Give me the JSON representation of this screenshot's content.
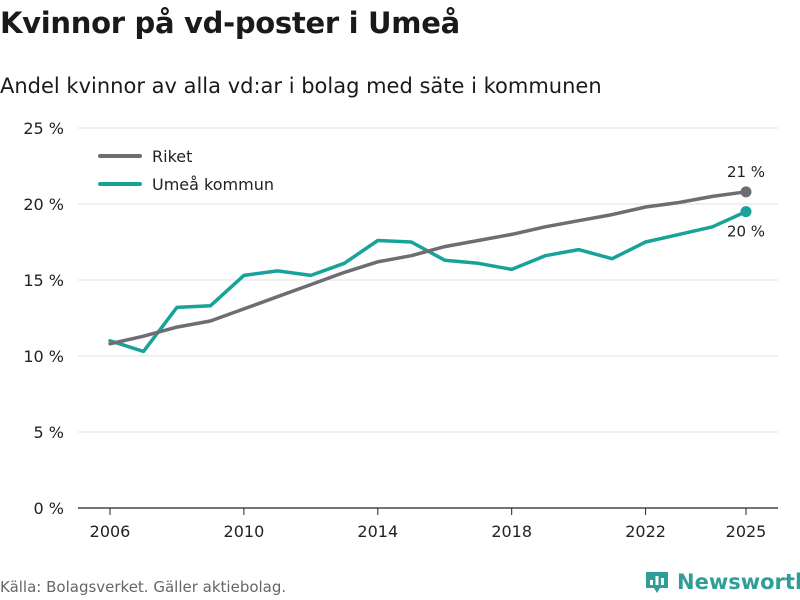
{
  "title": "Kvinnor på vd-poster i Umeå",
  "subtitle": "Andel kvinnor av alla vd:ar i bolag med säte i kommunen",
  "source": "Källa: Bolagsverket. Gäller aktiebolag.",
  "brand": "Newsworthy",
  "colors": {
    "riket": "#6d6d73",
    "umea": "#17a39a",
    "grid": "#e2e2e2",
    "axis": "#222222",
    "brand": "#2f9e96"
  },
  "chart_data": {
    "type": "line",
    "x": [
      2006,
      2007,
      2008,
      2009,
      2010,
      2011,
      2012,
      2013,
      2014,
      2015,
      2016,
      2017,
      2018,
      2019,
      2020,
      2021,
      2022,
      2023,
      2024,
      2025
    ],
    "series": [
      {
        "name": "Riket",
        "values": [
          10.8,
          11.3,
          11.9,
          12.3,
          13.1,
          13.9,
          14.7,
          15.5,
          16.2,
          16.6,
          17.2,
          17.6,
          18.0,
          18.5,
          18.9,
          19.3,
          19.8,
          20.1,
          20.5,
          20.8
        ],
        "end_label": "21 %"
      },
      {
        "name": "Umeå kommun",
        "values": [
          11.0,
          10.3,
          13.2,
          13.3,
          15.3,
          15.6,
          15.3,
          16.1,
          17.6,
          17.5,
          16.3,
          16.1,
          15.7,
          16.6,
          17.0,
          16.4,
          17.5,
          18.0,
          18.5,
          19.5
        ],
        "end_label": "20 %"
      }
    ],
    "yticks": [
      0,
      5,
      10,
      15,
      20,
      25
    ],
    "ytick_labels": [
      "0 %",
      "5 %",
      "10 %",
      "15 %",
      "20 %",
      "25 %"
    ],
    "xticks": [
      2006,
      2010,
      2014,
      2018,
      2022,
      2025
    ],
    "xtick_labels": [
      "2006",
      "2010",
      "2014",
      "2018",
      "2022",
      "2025"
    ],
    "ylim": [
      0,
      25
    ],
    "xlim": [
      2006,
      2025
    ],
    "legend_position": "top-left"
  }
}
